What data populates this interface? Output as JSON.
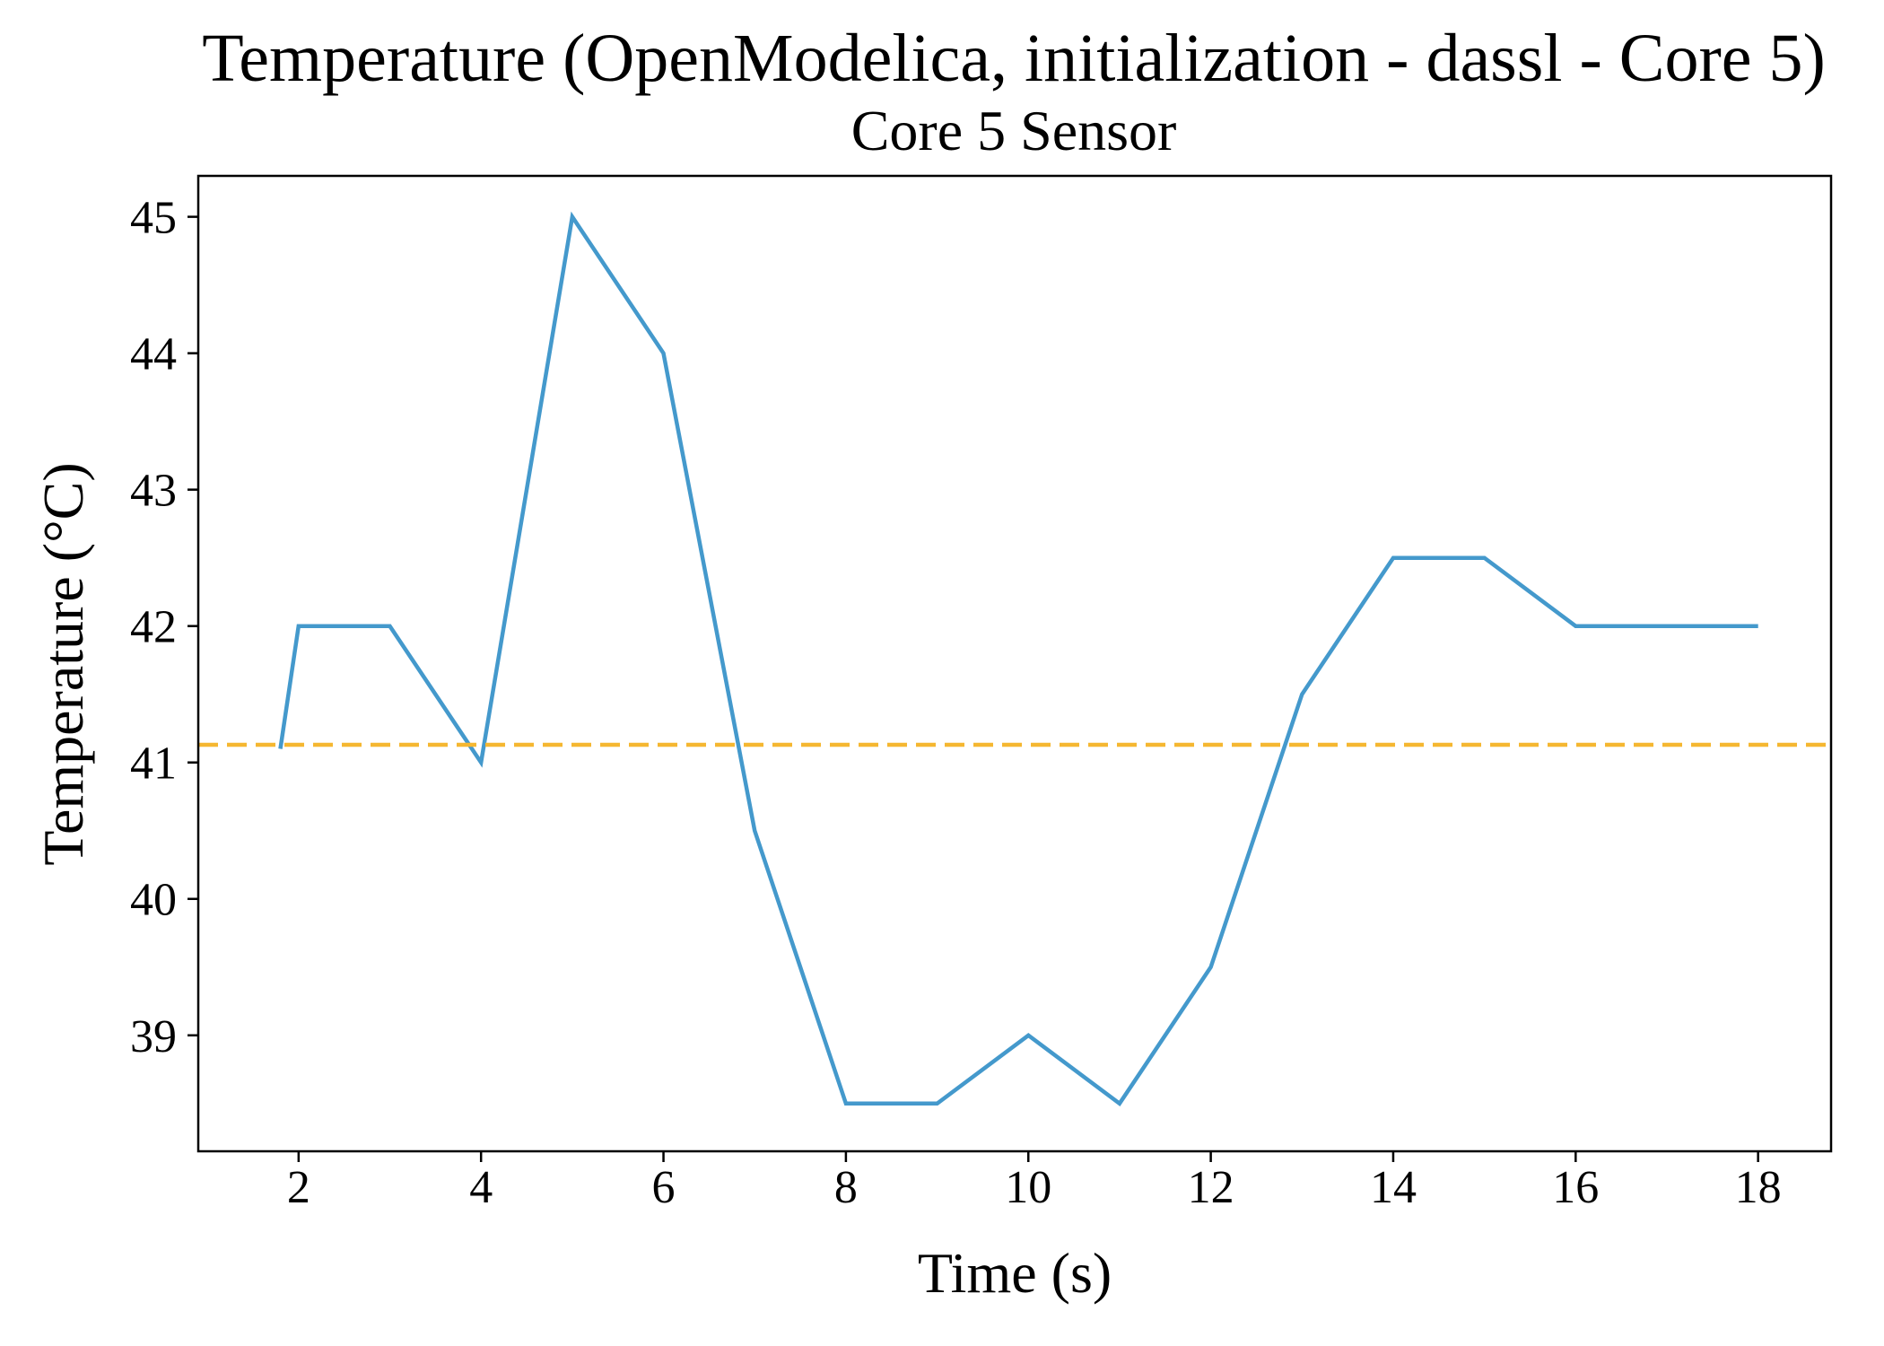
{
  "chart_data": {
    "type": "line",
    "title": "Temperature (OpenModelica, initialization - dassl - Core 5)",
    "subtitle": "Core 5 Sensor",
    "xlabel": "Time (s)",
    "ylabel": "Temperature (°C)",
    "xlim": [
      0.9,
      18.8
    ],
    "ylim": [
      38.15,
      45.3
    ],
    "x_ticks": [
      2,
      4,
      6,
      8,
      10,
      12,
      14,
      16,
      18
    ],
    "y_ticks": [
      39,
      40,
      41,
      42,
      43,
      44,
      45
    ],
    "grid": false,
    "series": [
      {
        "color": "#4499cc",
        "style": "solid",
        "x": [
          1.8,
          2,
          3,
          4,
          5,
          6,
          7,
          8,
          9,
          10,
          11,
          12,
          13,
          14,
          15,
          16,
          17,
          18
        ],
        "y": [
          41.1,
          42.0,
          42.0,
          41.0,
          45.0,
          44.0,
          40.5,
          38.5,
          38.5,
          39.0,
          38.5,
          39.5,
          41.5,
          42.5,
          42.5,
          42.0,
          42.0,
          42.0
        ]
      },
      {
        "color": "#f5b731",
        "style": "dashed",
        "y_constant": 41.13
      }
    ]
  }
}
